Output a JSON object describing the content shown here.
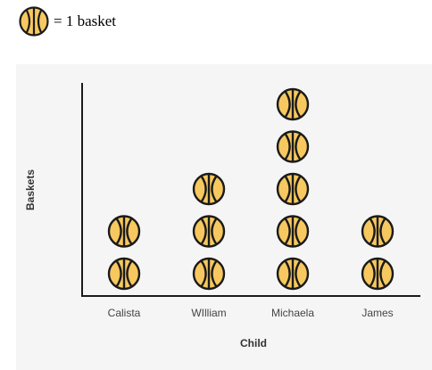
{
  "legend": {
    "icon": "basketball-icon",
    "text": "= 1 basket"
  },
  "chart_data": {
    "type": "pictograph",
    "categories": [
      "Calista",
      "WIlliam",
      "Michaela",
      "James"
    ],
    "values": [
      2,
      3,
      5,
      2
    ],
    "unit_value": 1,
    "xlabel": "Child",
    "ylabel": "Baskets",
    "grid": false,
    "legend_position": "top-left",
    "colors": {
      "ball_fill": "#f6c85f",
      "ball_stroke": "#1a1a1a",
      "axis": "#1a1a1a",
      "panel": "#f5f5f5"
    }
  }
}
